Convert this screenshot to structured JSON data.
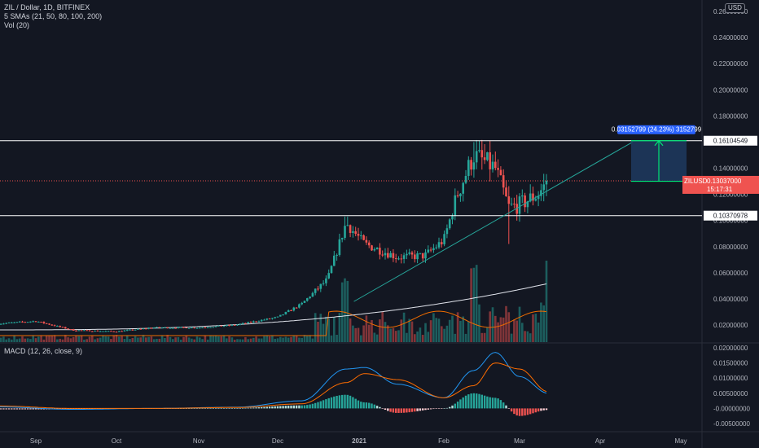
{
  "header": {
    "symbol_line": "ZIL / Dollar, 1D, BITFINEX",
    "sma_line": "5 SMAs (21, 50, 80, 100, 200)",
    "vol_line": "Vol (20)"
  },
  "macd_label": "MACD (12, 26, close, 9)",
  "currency_badge": "USD",
  "price_axis": {
    "ticks": [
      "0.26000000",
      "0.24000000",
      "0.22000000",
      "0.20000000",
      "0.18000000",
      "0.16000000",
      "0.14000000",
      "0.12000000",
      "0.10000000",
      "0.08000000",
      "0.06000000",
      "0.04000000",
      "0.02000000"
    ],
    "level_labels": [
      "0.16104549",
      "0.10370978"
    ],
    "current_price_label": "ZILUSD",
    "current_price": "0.13037000",
    "countdown": "15:17:31"
  },
  "macd_axis": {
    "ticks": [
      "0.02000000",
      "0.01500000",
      "0.01000000",
      "0.00500000",
      "-0.00000000",
      "-0.00500000"
    ]
  },
  "time_axis": {
    "labels": [
      "Sep",
      "Oct",
      "Nov",
      "Dec",
      "2021",
      "Feb",
      "Mar",
      "Apr",
      "May"
    ]
  },
  "measure_label": "0.03152799 (24.23%) 3152799",
  "colors": {
    "background": "#131722",
    "up": "#26a69a",
    "down": "#ef5350",
    "macd_line": "#2196f3",
    "signal_line": "#ff6d00",
    "trendline": "#26a69a",
    "measure_fill": "#1e3a5f",
    "measure_label_bg": "#2962ff"
  },
  "chart_data": {
    "type": "candlestick",
    "title": "ZIL / Dollar, 1D, BITFINEX",
    "price_range": [
      0.01,
      0.26
    ],
    "horizontal_levels": [
      0.16104549,
      0.10370978
    ],
    "last_price": 0.13037,
    "price_path": [
      {
        "t": "Aug 18",
        "p": 0.021
      },
      {
        "t": "Sep 1",
        "p": 0.023
      },
      {
        "t": "Sep 15",
        "p": 0.016
      },
      {
        "t": "Oct 1",
        "p": 0.015
      },
      {
        "t": "Oct 15",
        "p": 0.018
      },
      {
        "t": "Nov 1",
        "p": 0.018
      },
      {
        "t": "Nov 15",
        "p": 0.02
      },
      {
        "t": "Dec 1",
        "p": 0.026
      },
      {
        "t": "Dec 10",
        "p": 0.036
      },
      {
        "t": "Dec 20",
        "p": 0.055
      },
      {
        "t": "Dec 27",
        "p": 0.098
      },
      {
        "t": "Jan 3",
        "p": 0.082
      },
      {
        "t": "Jan 15",
        "p": 0.072
      },
      {
        "t": "Jan 25",
        "p": 0.073
      },
      {
        "t": "Feb 1",
        "p": 0.085
      },
      {
        "t": "Feb 6",
        "p": 0.12
      },
      {
        "t": "Feb 12",
        "p": 0.15
      },
      {
        "t": "Feb 20",
        "p": 0.14
      },
      {
        "t": "Feb 25",
        "p": 0.11
      },
      {
        "t": "Mar 1",
        "p": 0.112
      },
      {
        "t": "Mar 8",
        "p": 0.12
      },
      {
        "t": "Mar 12",
        "p": 0.13
      }
    ],
    "macd_range": [
      -0.007,
      0.021
    ],
    "macd_path": [
      {
        "t": "Aug 18",
        "macd": 0.0005,
        "signal": 0.0008
      },
      {
        "t": "Sep 15",
        "macd": -0.0003,
        "signal": 0.0
      },
      {
        "t": "Oct 15",
        "macd": 0.0,
        "signal": 0.0
      },
      {
        "t": "Nov 15",
        "macd": 0.0004,
        "signal": 0.0003
      },
      {
        "t": "Dec 10",
        "macd": 0.0025,
        "signal": 0.0015
      },
      {
        "t": "Dec 27",
        "macd": 0.013,
        "signal": 0.0085
      },
      {
        "t": "Jan 3",
        "macd": 0.0135,
        "signal": 0.0115
      },
      {
        "t": "Jan 15",
        "macd": 0.008,
        "signal": 0.0095
      },
      {
        "t": "Feb 1",
        "macd": 0.0035,
        "signal": 0.0035
      },
      {
        "t": "Feb 12",
        "macd": 0.0125,
        "signal": 0.0075
      },
      {
        "t": "Feb 20",
        "macd": 0.0185,
        "signal": 0.015
      },
      {
        "t": "Mar 1",
        "macd": 0.0105,
        "signal": 0.013
      },
      {
        "t": "Mar 12",
        "macd": 0.005,
        "signal": 0.0055
      }
    ]
  }
}
